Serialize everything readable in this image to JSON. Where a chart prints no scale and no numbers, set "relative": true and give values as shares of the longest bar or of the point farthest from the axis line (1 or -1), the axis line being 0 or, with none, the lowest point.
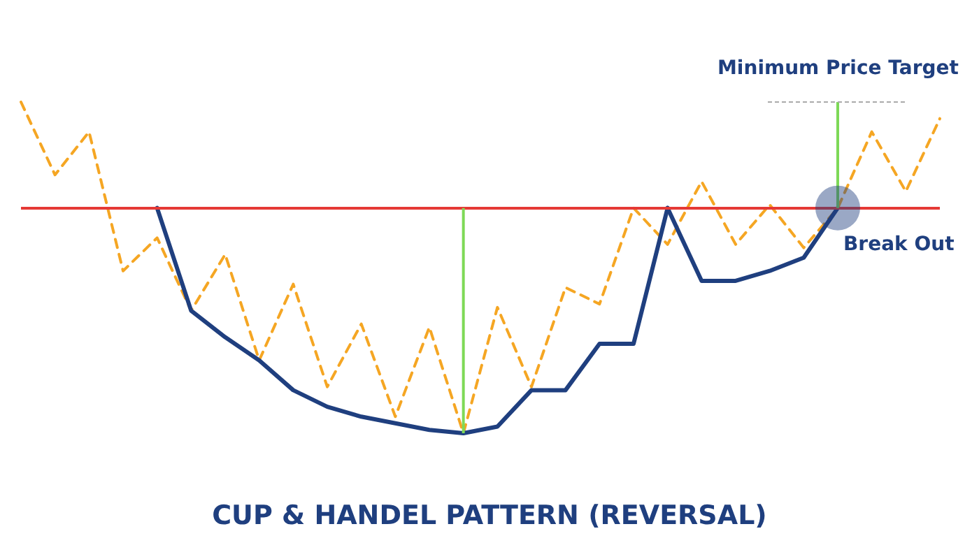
{
  "chart_data": {
    "type": "line",
    "title": "CUP & HANDEL PATTERN (REVERSAL)",
    "relative": true,
    "categories": [
      null,
      null,
      null,
      null,
      null,
      null,
      null,
      null,
      null,
      null,
      null,
      null,
      null,
      null,
      null,
      null,
      null,
      null,
      null,
      null,
      null,
      null,
      null,
      null,
      null,
      null,
      null,
      null
    ],
    "series": [
      {
        "color": "#f5a623",
        "line_style": "dashed",
        "values": [
          1.0,
          0.78,
          0.91,
          0.49,
          0.59,
          0.37,
          0.54,
          0.22,
          0.45,
          0.14,
          0.33,
          0.05,
          0.32,
          0,
          0.38,
          0.14,
          0.44,
          0.39,
          0.68,
          0.57,
          0.76,
          0.57,
          0.69,
          0.56,
          0.68,
          0.91,
          0.73,
          0.95
        ]
      },
      {
        "color": "#1f3f7f",
        "line_style": "solid",
        "values": [
          null,
          null,
          null,
          null,
          0.68,
          0.37,
          0.29,
          0.22,
          0.13,
          0.08,
          0.05,
          0.03,
          0.01,
          0,
          0.02,
          0.13,
          0.13,
          0.27,
          0.27,
          0.68,
          null,
          null,
          null,
          null,
          null,
          null,
          null,
          null
        ]
      },
      {
        "color": "#1f3f7f",
        "line_style": "solid",
        "values": [
          null,
          null,
          null,
          null,
          null,
          null,
          null,
          null,
          null,
          null,
          null,
          null,
          null,
          null,
          null,
          null,
          null,
          null,
          null,
          0.68,
          0.46,
          0.46,
          0.49,
          0.53,
          0.68,
          null,
          null,
          null
        ]
      }
    ],
    "ref_lines": [
      {
        "axis": "y",
        "value": 0.68,
        "color": "#e53935"
      }
    ],
    "annotations": [
      "Minimum Price Target",
      "Break Out"
    ],
    "grid": false,
    "marker": "none"
  }
}
